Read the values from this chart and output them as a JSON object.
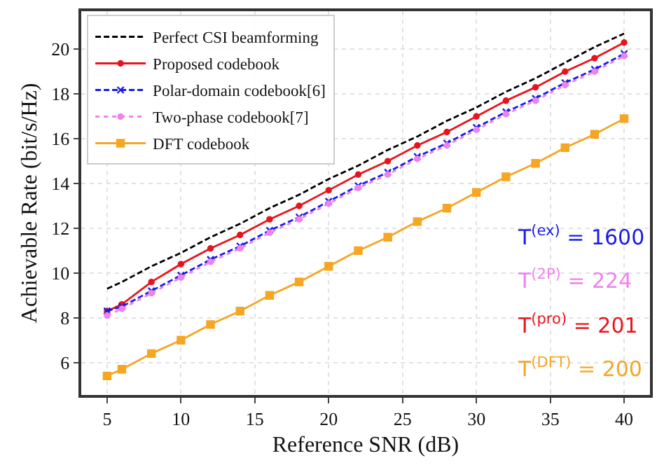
{
  "chart_data": {
    "type": "line",
    "xlabel": "Reference SNR (dB)",
    "ylabel": "Achievable Rate (bit/s/Hz)",
    "x": [
      5,
      6,
      8,
      10,
      12,
      14,
      16,
      18,
      20,
      22,
      24,
      26,
      28,
      30,
      32,
      34,
      36,
      38,
      40
    ],
    "xlim": [
      3.25,
      41.75
    ],
    "xticks": [
      5,
      10,
      15,
      20,
      25,
      30,
      35,
      40
    ],
    "ylim": [
      4.55,
      21.7
    ],
    "yticks": [
      6,
      8,
      10,
      12,
      14,
      16,
      18,
      20
    ],
    "grid": true,
    "legend": "top left",
    "series": [
      {
        "name": "Perfect CSI beamforming",
        "color": "#000000",
        "line_style": "dashed",
        "marker": "none",
        "values": [
          9.3,
          9.6,
          10.3,
          10.9,
          11.6,
          12.2,
          12.9,
          13.5,
          14.2,
          14.8,
          15.5,
          16.1,
          16.8,
          17.4,
          18.1,
          18.7,
          19.4,
          20.1,
          20.7
        ]
      },
      {
        "name": "Proposed codebook",
        "color": "#e8141c",
        "line_style": "solid",
        "marker": "circle",
        "values": [
          8.3,
          8.6,
          9.6,
          10.4,
          11.1,
          11.7,
          12.4,
          13.0,
          13.7,
          14.4,
          15.0,
          15.7,
          16.3,
          17.0,
          17.7,
          18.3,
          19.0,
          19.6,
          20.3
        ]
      },
      {
        "name": "Polar-domain codebook[6]",
        "color": "#1a1ae6",
        "line_style": "dashed",
        "marker": "cross",
        "values": [
          8.3,
          8.5,
          9.2,
          9.9,
          10.6,
          11.2,
          11.9,
          12.5,
          13.2,
          13.9,
          14.5,
          15.2,
          15.8,
          16.5,
          17.2,
          17.8,
          18.5,
          19.1,
          19.8
        ]
      },
      {
        "name": "Two-phase codebook[7]",
        "color": "#ee82ee",
        "line_style": "dotted",
        "marker": "circle",
        "values": [
          8.1,
          8.4,
          9.1,
          9.8,
          10.5,
          11.1,
          11.8,
          12.4,
          13.1,
          13.8,
          14.4,
          15.1,
          15.7,
          16.4,
          17.1,
          17.7,
          18.4,
          19.0,
          19.7
        ]
      },
      {
        "name": "DFT codebook",
        "color": "#f5a623",
        "line_style": "solid",
        "marker": "square",
        "values": [
          5.4,
          5.7,
          6.4,
          7.0,
          7.7,
          8.3,
          9.0,
          9.6,
          10.3,
          11.0,
          11.6,
          12.3,
          12.9,
          13.6,
          14.3,
          14.9,
          15.6,
          16.2,
          16.9
        ]
      }
    ],
    "annotations": [
      "T$^{(ex)}$ = 1600",
      "T$^{(2P)}$ = 224",
      "T$^{(pro)}$ = 201",
      "T$^{(DFT)}$ = 200"
    ]
  }
}
